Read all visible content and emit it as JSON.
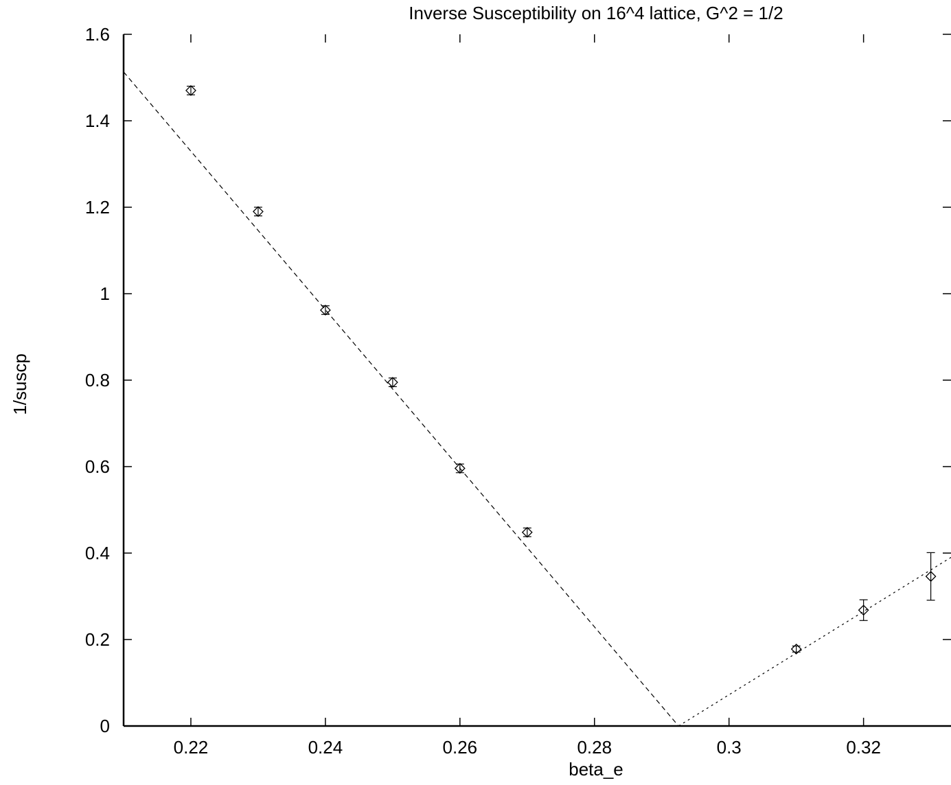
{
  "chart_data": {
    "type": "scatter",
    "title": "Inverse Susceptibility on 16^4 lattice, G^2 = 1/2",
    "xlabel": "beta_e",
    "ylabel": "1/suscp",
    "xlim": [
      0.21,
      0.333
    ],
    "ylim": [
      0,
      1.6
    ],
    "x_ticks": [
      0.22,
      0.24,
      0.26,
      0.28,
      0.3,
      0.32
    ],
    "x_tick_labels": [
      "0.22",
      "0.24",
      "0.26",
      "0.28",
      "0.3",
      "0.32"
    ],
    "y_ticks": [
      0,
      0.2,
      0.4,
      0.6,
      0.8,
      1,
      1.2,
      1.4,
      1.6
    ],
    "y_tick_labels": [
      "0",
      "0.2",
      "0.4",
      "0.6",
      "0.8",
      "1",
      "1.2",
      "1.4",
      "1.6"
    ],
    "grid": false,
    "legend": "none",
    "series": [
      {
        "marker": "diamond",
        "points": [
          {
            "x": 0.22,
            "y": 1.47,
            "err": 0.01
          },
          {
            "x": 0.23,
            "y": 1.19,
            "err": 0.01
          },
          {
            "x": 0.24,
            "y": 0.962,
            "err": 0.01
          },
          {
            "x": 0.25,
            "y": 0.795,
            "err": 0.01
          },
          {
            "x": 0.26,
            "y": 0.596,
            "err": 0.01
          },
          {
            "x": 0.27,
            "y": 0.448,
            "err": 0.01
          },
          {
            "x": 0.31,
            "y": 0.178,
            "err": 0.007
          },
          {
            "x": 0.32,
            "y": 0.268,
            "err": 0.024
          },
          {
            "x": 0.33,
            "y": 0.346,
            "err": 0.055
          }
        ]
      }
    ],
    "fit_lines": [
      {
        "style": "dashed",
        "x": [
          0.21,
          0.2925
        ],
        "y": [
          1.513,
          0.0
        ]
      },
      {
        "style": "dotted",
        "x": [
          0.2925,
          0.333
        ],
        "y": [
          0.0,
          0.39
        ]
      }
    ]
  }
}
